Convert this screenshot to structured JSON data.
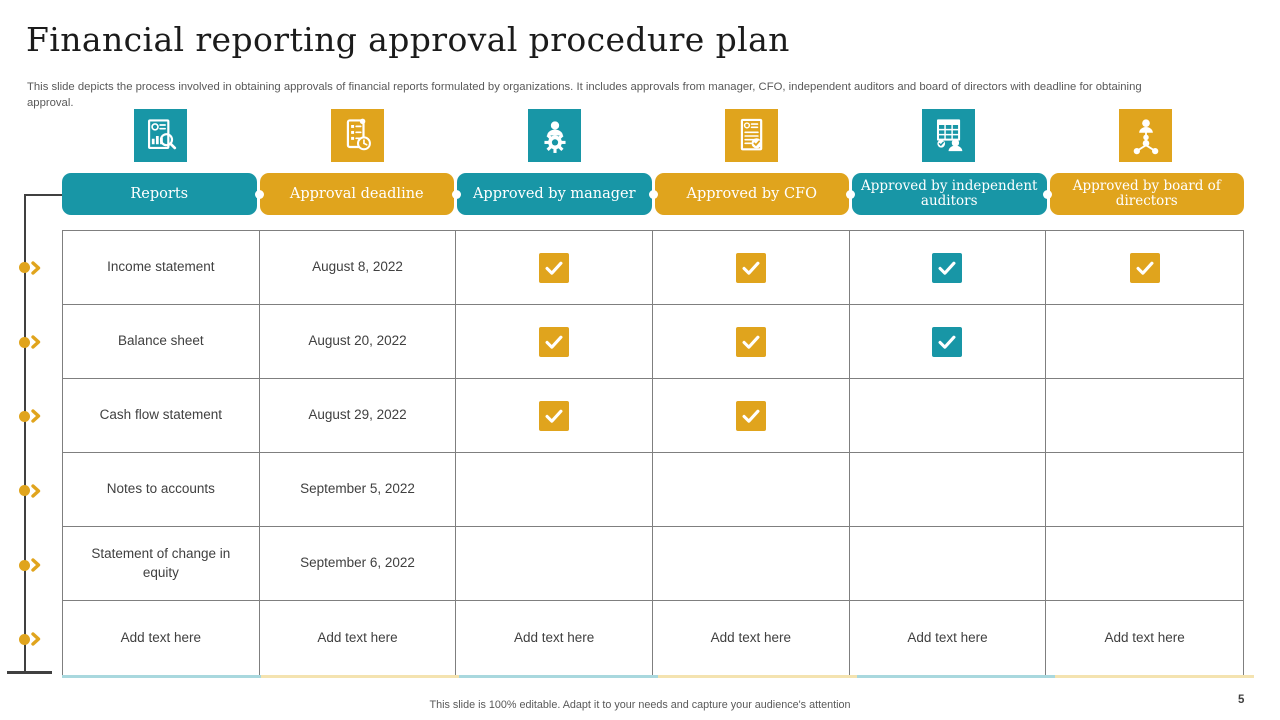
{
  "title": "Financial reporting approval procedure plan",
  "subtitle": "This slide depicts the process involved in obtaining approvals of financial reports formulated by organizations. It includes approvals from manager, CFO, independent auditors and board of directors with deadline for obtaining approval.",
  "footer": {
    "note": "This slide is 100% editable.  Adapt it to your needs and capture your audience's attention",
    "page_number": "5"
  },
  "colors": {
    "teal": "#1896A6",
    "gold": "#E0A41D",
    "accent_teal_light": "#A9D8DE",
    "accent_gold_light": "#F4E3B0",
    "grid_line": "#7F7F7F",
    "connector": "#404040",
    "cell_text": "#404040"
  },
  "columns": [
    {
      "label": "Reports",
      "color": "teal",
      "icon": "report-analysis-icon"
    },
    {
      "label": "Approval deadline",
      "color": "gold",
      "icon": "deadline-scroll-clock-icon"
    },
    {
      "label": "Approved by manager",
      "color": "teal",
      "icon": "manager-gear-icon"
    },
    {
      "label": "Approved by CFO",
      "color": "gold",
      "icon": "cfo-approved-document-icon"
    },
    {
      "label": "Approved by independent auditors",
      "color": "teal",
      "icon": "auditor-spreadsheet-icon"
    },
    {
      "label": "Approved by board of directors",
      "color": "gold",
      "icon": "board-orgchart-icon"
    }
  ],
  "rows": [
    {
      "report": "Income statement",
      "deadline": "August 8, 2022",
      "approvals": [
        "gold",
        "gold",
        "teal",
        "gold"
      ]
    },
    {
      "report": "Balance sheet",
      "deadline": "August 20, 2022",
      "approvals": [
        "gold",
        "gold",
        "teal",
        null
      ]
    },
    {
      "report": "Cash flow statement",
      "deadline": "August 29, 2022",
      "approvals": [
        "gold",
        "gold",
        null,
        null
      ]
    },
    {
      "report": "Notes to accounts",
      "deadline": "September 5, 2022",
      "approvals": [
        null,
        null,
        null,
        null
      ]
    },
    {
      "report": "Statement of change in equity",
      "deadline": "September 6, 2022",
      "approvals": [
        null,
        null,
        null,
        null
      ]
    },
    {
      "report": "Add text here",
      "deadline": "Add text here",
      "approvals": [
        null,
        null,
        null,
        null
      ],
      "approval_texts": [
        "Add text here",
        "Add text here",
        "Add text here",
        "Add text here"
      ]
    }
  ]
}
